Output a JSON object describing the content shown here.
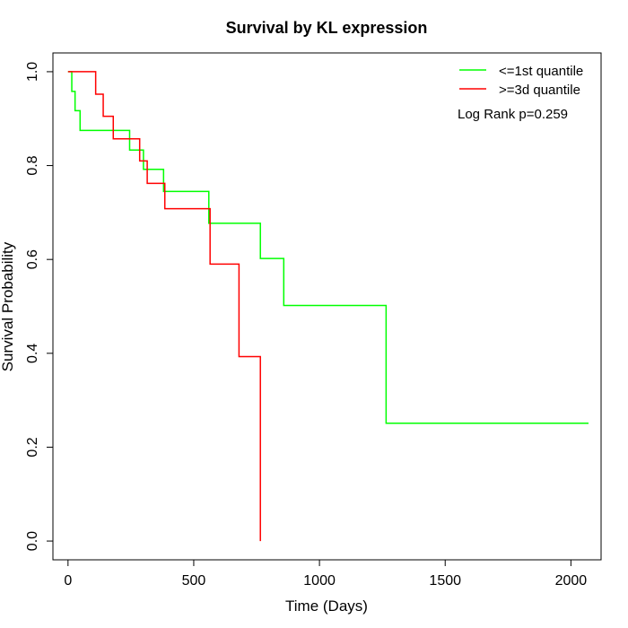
{
  "chart_data": {
    "type": "line",
    "title": "Survival by KL expression",
    "xlabel": "Time (Days)",
    "ylabel": "Survival Probability",
    "xlim": [
      -60,
      2120
    ],
    "ylim": [
      -0.04,
      1.04
    ],
    "xticks": [
      0,
      500,
      1000,
      1500,
      2000
    ],
    "xtick_labels": [
      "0",
      "500",
      "1000",
      "1500",
      "2000"
    ],
    "yticks": [
      0.0,
      0.2,
      0.4,
      0.6,
      0.8,
      1.0
    ],
    "ytick_labels": [
      "0.0",
      "0.2",
      "0.4",
      "0.6",
      "0.8",
      "1.0"
    ],
    "grid": false,
    "legend_position": "top-right",
    "annotation": "Log Rank p=0.259",
    "series": [
      {
        "name": "<=1st quantile",
        "color": "#00ff00",
        "step": true,
        "x": [
          0,
          15,
          28,
          48,
          245,
          300,
          380,
          560,
          765,
          858,
          1265,
          2070
        ],
        "y": [
          1.0,
          0.958,
          0.917,
          0.875,
          0.833,
          0.792,
          0.745,
          0.677,
          0.602,
          0.502,
          0.251,
          0.251
        ]
      },
      {
        "name": ">=3d quantile",
        "color": "#ff0000",
        "step": true,
        "x": [
          0,
          110,
          140,
          180,
          285,
          315,
          385,
          565,
          680,
          765
        ],
        "y": [
          1.0,
          0.952,
          0.905,
          0.857,
          0.81,
          0.762,
          0.708,
          0.59,
          0.393,
          0.0
        ]
      }
    ]
  }
}
